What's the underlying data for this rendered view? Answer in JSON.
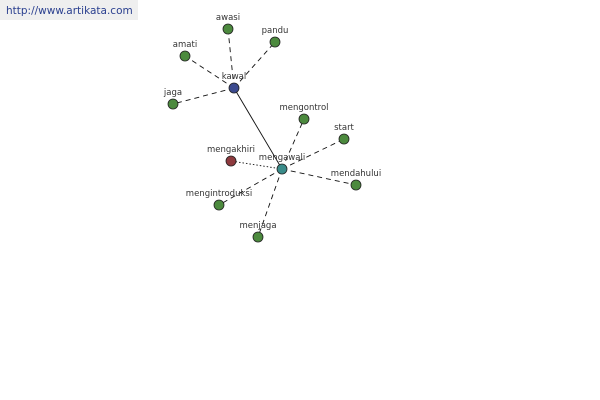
{
  "watermark": "http://www.artikata.com",
  "colors": {
    "green": "#4c8a3e",
    "blue": "#3b4a8e",
    "teal": "#3a8c8a",
    "red": "#8e3a3e"
  },
  "nodes": [
    {
      "id": "kawal",
      "label": "kawal",
      "color": "blue"
    },
    {
      "id": "awasi",
      "label": "awasi",
      "color": "green"
    },
    {
      "id": "pandu",
      "label": "pandu",
      "color": "green"
    },
    {
      "id": "amati",
      "label": "amati",
      "color": "green"
    },
    {
      "id": "jaga",
      "label": "jaga",
      "color": "green"
    },
    {
      "id": "mengawali",
      "label": "mengawali",
      "color": "teal"
    },
    {
      "id": "mengontrol",
      "label": "mengontrol",
      "color": "green"
    },
    {
      "id": "start",
      "label": "start",
      "color": "green"
    },
    {
      "id": "mengakhiri",
      "label": "mengakhiri",
      "color": "red"
    },
    {
      "id": "mendahului",
      "label": "mendahului",
      "color": "green"
    },
    {
      "id": "mengintroduksi",
      "label": "mengintroduksi",
      "color": "green"
    },
    {
      "id": "menjaga",
      "label": "menjaga",
      "color": "green"
    }
  ],
  "edges": [
    {
      "from": "kawal",
      "to": "awasi",
      "style": "dashed"
    },
    {
      "from": "kawal",
      "to": "pandu",
      "style": "dashed"
    },
    {
      "from": "kawal",
      "to": "amati",
      "style": "dashed"
    },
    {
      "from": "kawal",
      "to": "jaga",
      "style": "dashed"
    },
    {
      "from": "kawal",
      "to": "mengawali",
      "style": "solid"
    },
    {
      "from": "mengawali",
      "to": "mengontrol",
      "style": "dashed"
    },
    {
      "from": "mengawali",
      "to": "start",
      "style": "dashed"
    },
    {
      "from": "mengawali",
      "to": "mengakhiri",
      "style": "dotted"
    },
    {
      "from": "mengawali",
      "to": "mendahului",
      "style": "dashed"
    },
    {
      "from": "mengawali",
      "to": "mengintroduksi",
      "style": "dashed"
    },
    {
      "from": "mengawali",
      "to": "menjaga",
      "style": "dashed"
    }
  ]
}
